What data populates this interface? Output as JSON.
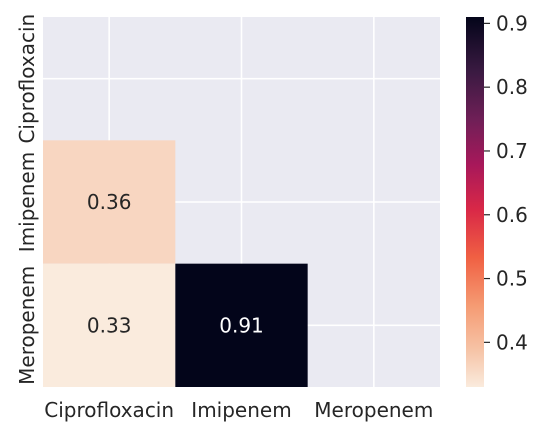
{
  "chart_data": {
    "type": "heatmap",
    "title": "",
    "xlabel": "",
    "ylabel": "",
    "x_categories": [
      "Ciprofloxacin",
      "Imipenem",
      "Meropenem"
    ],
    "y_categories": [
      "Ciprofloxacin",
      "Imipenem",
      "Meropenem"
    ],
    "mask": "upper-triangle-including-diagonal",
    "cells": [
      {
        "row": "Imipenem",
        "col": "Ciprofloxacin",
        "value": 0.36,
        "label": "0.36"
      },
      {
        "row": "Meropenem",
        "col": "Ciprofloxacin",
        "value": 0.33,
        "label": "0.33"
      },
      {
        "row": "Meropenem",
        "col": "Imipenem",
        "value": 0.91,
        "label": "0.91"
      }
    ],
    "colorbar": {
      "range": [
        0.33,
        0.91
      ],
      "ticks": [
        "0.4",
        "0.5",
        "0.6",
        "0.7",
        "0.8",
        "0.9"
      ],
      "colormap": "rocket_r"
    },
    "background_color": "#eaeaf2",
    "grid": true
  }
}
